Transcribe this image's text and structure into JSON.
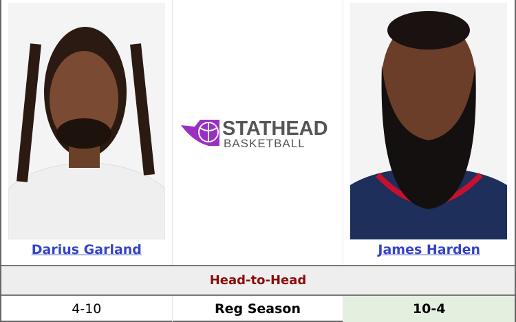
{
  "players": [
    {
      "name": "Darius Garland",
      "record": "4-10",
      "winner": false
    },
    {
      "name": "James Harden",
      "record": "10-4",
      "winner": true
    }
  ],
  "logo": {
    "line1": "STATHEAD",
    "line2": "BASKETBALL",
    "color": "#9b2fc4"
  },
  "section_title": "Head-to-Head",
  "row_label": "Reg Season",
  "colors": {
    "link": "#3443c9",
    "section": "#8b0b0b",
    "win_bg": "#e3f0df"
  }
}
